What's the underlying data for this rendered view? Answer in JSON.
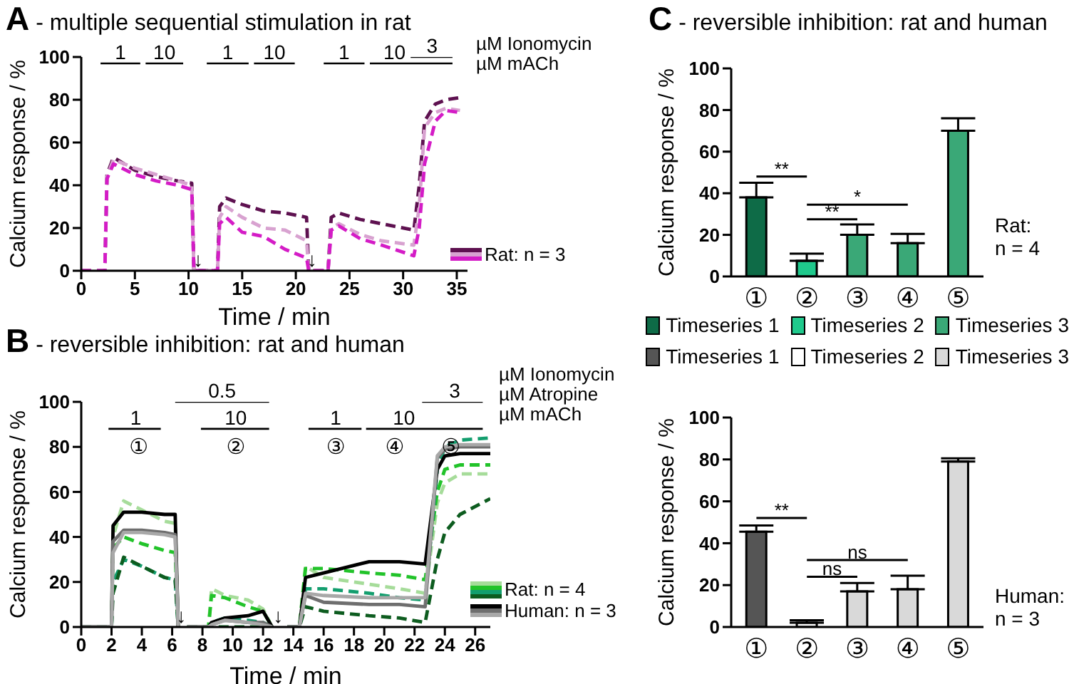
{
  "chart_data": [
    {
      "type": "line",
      "title": "A - multiple sequential stimulation in rat",
      "xlabel": "Time / min",
      "ylabel": "Calcium response / %",
      "xlim": [
        0,
        36
      ],
      "xticks": [
        0,
        5,
        10,
        15,
        20,
        25,
        30,
        35
      ],
      "ylim": [
        0,
        100
      ],
      "yticks": [
        0,
        20,
        40,
        60,
        80,
        100
      ],
      "marker": "none",
      "legend": "bottom right",
      "x": [
        0,
        2.2,
        2.4,
        3,
        5,
        7,
        9,
        10.3,
        10.5,
        12.7,
        12.9,
        13.5,
        15,
        17,
        19,
        21,
        21.2,
        23,
        23.3,
        24,
        26,
        28,
        31,
        31.5,
        32,
        33,
        34,
        35.3
      ],
      "series": [
        {
          "name": "Rat: n = 3",
          "color": "#5e1150",
          "line_style": "dashed",
          "values": [
            0,
            0,
            45,
            53,
            47,
            44,
            42,
            41,
            0,
            0,
            30,
            34,
            31,
            28,
            27,
            25,
            0,
            0,
            25,
            27,
            24,
            22,
            19,
            40,
            70,
            78,
            80,
            81
          ]
        },
        {
          "color": "#d8a2d0",
          "line_style": "dashed",
          "values": [
            0,
            0,
            44,
            52,
            48,
            45,
            42,
            40,
            0,
            0,
            25,
            30,
            25,
            20,
            19,
            14,
            0,
            0,
            20,
            22,
            17,
            14,
            12,
            30,
            67,
            74,
            76,
            75
          ]
        },
        {
          "color": "#d41cc6",
          "line_style": "dashed",
          "values": [
            0,
            0,
            43,
            50,
            45,
            42,
            40,
            38,
            0,
            0,
            22,
            25,
            18,
            16,
            10,
            6,
            0,
            0,
            19,
            21,
            15,
            12,
            7,
            20,
            50,
            70,
            75,
            74
          ]
        },
        {
          "type": "line",
          "color": "#000000",
          "line_style": "solid",
          "x": [
            1.8,
            5.5
          ],
          "values": [
            97,
            97
          ]
        },
        {
          "type": "line",
          "color": "#000000",
          "line_style": "solid",
          "x": [
            6.0,
            9.5
          ],
          "values": [
            97,
            97
          ]
        },
        {
          "type": "line",
          "color": "#000000",
          "line_style": "solid",
          "x": [
            11.7,
            15.6
          ],
          "values": [
            97,
            97
          ]
        },
        {
          "type": "line",
          "color": "#000000",
          "line_style": "solid",
          "x": [
            16.1,
            19.9
          ],
          "values": [
            97,
            97
          ]
        },
        {
          "type": "line",
          "color": "#000000",
          "line_style": "solid",
          "x": [
            22.6,
            26.4
          ],
          "values": [
            97,
            97
          ]
        },
        {
          "type": "line",
          "color": "#000000",
          "line_style": "solid",
          "x": [
            26.9,
            34.6
          ],
          "values": [
            97,
            97
          ]
        },
        {
          "type": "line",
          "color": "#000000",
          "line_style": "solid",
          "x": [
            30.7,
            34.6
          ],
          "values": [
            100,
            100
          ]
        }
      ],
      "annotations": [
        {
          "text": "1",
          "x": 3.65,
          "y": 97
        },
        {
          "text": "10",
          "x": 7.75,
          "y": 97
        },
        {
          "text": "1",
          "x": 13.65,
          "y": 97
        },
        {
          "text": "10",
          "x": 18,
          "y": 97
        },
        {
          "text": "1",
          "x": 24.5,
          "y": 97
        },
        {
          "text": "10",
          "x": 29.2,
          "y": 97
        },
        {
          "text": "3",
          "x": 32.7,
          "y": 100
        },
        {
          "text": "↓",
          "x": 10.9,
          "y": 0
        },
        {
          "text": "↓",
          "x": 21.5,
          "y": 0
        },
        "µM Ionomycin",
        "µM mACh"
      ]
    },
    {
      "type": "line",
      "title": "B - reversible inhibition: rat and human",
      "xlabel": "Time / min",
      "ylabel": "Calcium response / %",
      "xlim": [
        0,
        27
      ],
      "xticks": [
        0,
        2,
        4,
        6,
        8,
        10,
        12,
        14,
        16,
        18,
        20,
        22,
        24,
        26
      ],
      "ylim": [
        0,
        100
      ],
      "yticks": [
        0,
        20,
        40,
        60,
        80,
        100
      ],
      "marker": "none",
      "legend": "bottom right",
      "x": [
        0,
        2,
        2.1,
        2.8,
        4,
        5.5,
        6.2,
        6.4,
        6.6,
        7,
        8.4,
        8.6,
        9.5,
        11,
        12,
        12.6,
        13.2,
        13.6,
        14.4,
        14.8,
        16,
        19,
        21,
        22.7,
        23.5,
        24,
        25,
        27
      ],
      "series": [
        {
          "name": "Rat: n = 4",
          "color": "#a6dc9a",
          "line_style": "dashed",
          "values": [
            0,
            0,
            40,
            56,
            52,
            47,
            46,
            0,
            null,
            0,
            0,
            17,
            14,
            12,
            8,
            0,
            null,
            0,
            0,
            27,
            22,
            19,
            17,
            15,
            55,
            64,
            68,
            68
          ]
        },
        {
          "color": "#22c32a",
          "line_style": "dashed",
          "values": [
            0,
            0,
            35,
            40,
            37,
            34,
            33,
            0,
            null,
            0,
            0,
            14,
            13,
            9,
            7,
            0,
            null,
            0,
            0,
            26,
            26,
            24,
            23,
            21,
            60,
            70,
            72,
            72
          ]
        },
        {
          "color": "#139e6e",
          "line_style": "dashed",
          "values": [
            0,
            0,
            20,
            30,
            27,
            22,
            21,
            0,
            null,
            0,
            0,
            2,
            4,
            3,
            2,
            0,
            null,
            0,
            0,
            17,
            17,
            15,
            13,
            12,
            70,
            80,
            83,
            84
          ]
        },
        {
          "color": "#0d5c1f",
          "line_style": "dashed",
          "values": [
            0,
            0,
            15,
            31,
            27,
            22,
            21,
            0,
            null,
            0,
            0,
            0,
            0,
            0,
            0,
            0,
            null,
            0,
            0,
            9,
            7,
            5,
            4,
            2,
            30,
            42,
            50,
            57
          ]
        },
        {
          "name": "Human: n = 3",
          "color": "#000000",
          "line_style": "solid",
          "values": [
            0,
            0,
            45,
            51,
            51,
            50,
            50,
            0,
            null,
            0,
            0,
            2,
            4,
            5,
            7,
            0,
            null,
            0,
            0,
            22,
            24,
            29,
            29,
            28,
            70,
            76,
            77,
            77
          ]
        },
        {
          "color": "#6e6e6e",
          "line_style": "solid",
          "values": [
            0,
            0,
            38,
            43,
            43,
            42,
            41,
            0,
            null,
            0,
            0,
            1,
            3,
            2,
            2,
            0,
            null,
            0,
            0,
            14,
            11,
            10,
            10,
            9,
            75,
            79,
            80,
            80
          ]
        },
        {
          "color": "#a8a8a8",
          "line_style": "solid",
          "values": [
            0,
            0,
            33,
            42,
            42,
            41,
            40,
            0,
            null,
            0,
            0,
            1,
            3,
            2,
            1,
            0,
            null,
            0,
            0,
            15,
            14,
            13,
            13,
            13,
            76,
            80,
            81,
            81
          ]
        },
        {
          "type": "line",
          "color": "#000000",
          "line_style": "solid",
          "x": [
            1.8,
            5.25
          ],
          "values": [
            88,
            88
          ]
        },
        {
          "type": "line",
          "color": "#000000",
          "line_style": "solid",
          "x": [
            7.9,
            12.4
          ],
          "values": [
            88,
            88
          ]
        },
        {
          "type": "line",
          "color": "#000000",
          "line_style": "solid",
          "x": [
            15.0,
            18.5
          ],
          "values": [
            88,
            88
          ]
        },
        {
          "type": "line",
          "color": "#000000",
          "line_style": "solid",
          "x": [
            18.8,
            26.5
          ],
          "values": [
            88,
            88
          ]
        },
        {
          "type": "line",
          "color": "#000000",
          "line_style": "solid",
          "x": [
            6.2,
            12.4
          ],
          "values": [
            100,
            100
          ]
        },
        {
          "type": "line",
          "color": "#000000",
          "line_style": "solid",
          "x": [
            22.5,
            26.5
          ],
          "values": [
            100,
            100
          ]
        }
      ],
      "annotations": [
        {
          "text": "1",
          "x": 3.6,
          "y": 88
        },
        {
          "text": "10",
          "x": 10.2,
          "y": 88
        },
        {
          "text": "1",
          "x": 16.8,
          "y": 88
        },
        {
          "text": "10",
          "x": 21.3,
          "y": 88
        },
        {
          "text": "0.5",
          "x": 9.3,
          "y": 100
        },
        {
          "text": "3",
          "x": 24.65,
          "y": 100
        },
        {
          "text": "↓",
          "x": 6.6,
          "y": 0
        },
        {
          "text": "↓",
          "x": 13.0,
          "y": 0
        },
        "①",
        "②",
        "③",
        "④",
        "⑤",
        "µM Ionomycin",
        "µM Atropine",
        "µM mACh"
      ]
    },
    {
      "type": "bar",
      "title": "C - reversible inhibition: rat and human",
      "ylabel": "Calcium response / %",
      "categories": [
        "①",
        "②",
        "③",
        "④",
        "⑤"
      ],
      "stacked": true,
      "ylim": [
        0,
        100
      ],
      "yticks": [
        0,
        20,
        40,
        60,
        80,
        100
      ],
      "legend": "bottom",
      "series": [
        {
          "name": "Timeseries 1",
          "color": "#0e6b47",
          "values": [
            38,
            null,
            null,
            null,
            null
          ],
          "errors": [
            [
              38,
              45
            ],
            null,
            null,
            null,
            null
          ]
        },
        {
          "name": "Timeseries 2",
          "color": "#1fc98c",
          "values": [
            null,
            7.5,
            null,
            null,
            null
          ],
          "errors": [
            null,
            [
              7.5,
              11
            ],
            null,
            null,
            null
          ]
        },
        {
          "name": "Timeseries 3",
          "color": "#3aa877",
          "values": [
            null,
            null,
            20,
            16,
            70
          ],
          "errors": [
            null,
            null,
            [
              20,
              25
            ],
            [
              16,
              20.5
            ],
            [
              70,
              76
            ]
          ]
        }
      ],
      "annotations": [
        "**",
        "**",
        "*",
        "Rat:\nn = 4"
      ]
    },
    {
      "type": "bar",
      "ylabel": "Calcium response / %",
      "categories": [
        "①",
        "②",
        "③",
        "④",
        "⑤"
      ],
      "stacked": true,
      "ylim": [
        0,
        100
      ],
      "yticks": [
        0,
        20,
        40,
        60,
        80,
        100
      ],
      "legend": "top",
      "series": [
        {
          "name": "Timeseries 1",
          "color": "#555555",
          "values": [
            45.5,
            null,
            null,
            null,
            null
          ],
          "errors": [
            [
              45.5,
              48.5
            ],
            null,
            null,
            null,
            null
          ]
        },
        {
          "name": "Timeseries 2",
          "color": "#ffffff",
          "values": [
            null,
            2,
            null,
            null,
            null
          ],
          "errors": [
            null,
            [
              2,
              3.2
            ],
            null,
            null,
            null
          ]
        },
        {
          "name": "Timeseries 3",
          "color": "#d9d9d9",
          "values": [
            null,
            null,
            17,
            18,
            79
          ],
          "errors": [
            null,
            null,
            [
              17,
              21
            ],
            [
              18,
              24.5
            ],
            [
              79,
              80.5
            ]
          ]
        }
      ],
      "annotations": [
        "**",
        "ns",
        "ns",
        "Human:\nn = 3"
      ]
    }
  ]
}
